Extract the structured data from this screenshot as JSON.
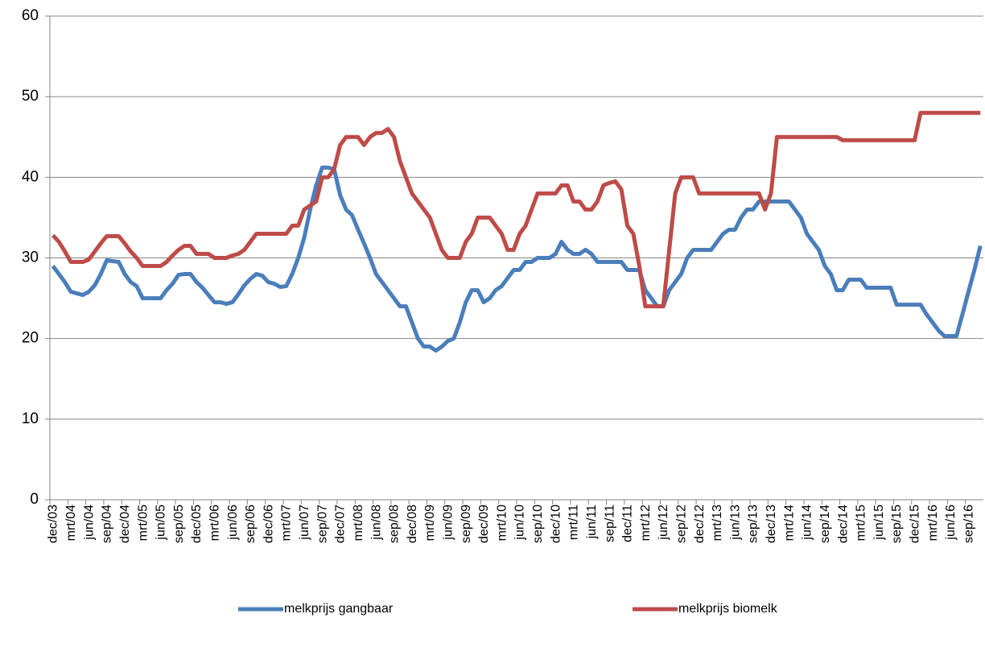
{
  "chart_data": {
    "type": "line",
    "categories": [
      "dec/03",
      null,
      null,
      "mrt/04",
      null,
      null,
      "jun/04",
      null,
      null,
      "sep/04",
      null,
      null,
      "dec/04",
      null,
      null,
      "mrt/05",
      null,
      null,
      "jun/05",
      null,
      null,
      "sep/05",
      null,
      null,
      "dec/05",
      null,
      null,
      "mrt/06",
      null,
      null,
      "jun/06",
      null,
      null,
      "sep/06",
      null,
      null,
      "dec/06",
      null,
      null,
      "mrt/07",
      null,
      null,
      "jun/07",
      null,
      null,
      "sep/07",
      null,
      null,
      "dec/07",
      null,
      null,
      "mrt/08",
      null,
      null,
      "jun/08",
      null,
      null,
      "sep/08",
      null,
      null,
      "dec/08",
      null,
      null,
      "mrt/09",
      null,
      null,
      "jun/09",
      null,
      null,
      "sep/09",
      null,
      null,
      "dec/09",
      null,
      null,
      "mrt/10",
      null,
      null,
      "jun/10",
      null,
      null,
      "sep/10",
      null,
      null,
      "dec/10",
      null,
      null,
      "mrt/11",
      null,
      null,
      "jun/11",
      null,
      null,
      "sep/11",
      null,
      null,
      "dec/11",
      null,
      null,
      "mrt/12",
      null,
      null,
      "jun/12",
      null,
      null,
      "sep/12",
      null,
      null,
      "dec/12",
      null,
      null,
      "mrt/13",
      null,
      null,
      "jun/13",
      null,
      null,
      "sep/13",
      null,
      null,
      "dec/13",
      null,
      null,
      "mrt/14",
      null,
      null,
      "jun/14",
      null,
      null,
      "sep/14",
      null,
      null,
      "dec/14",
      null,
      null,
      "mrt/15",
      null,
      null,
      "jun/15",
      null,
      null,
      "sep/15",
      null,
      null,
      "dec/15",
      null,
      null,
      "mrt/16",
      null,
      null,
      "jun/16",
      null,
      null,
      "sep/16",
      null,
      null
    ],
    "series": [
      {
        "name": "melkprijs gangbaar",
        "color": "#4a7ebb",
        "values": [
          29,
          28,
          27,
          25.8,
          25.6,
          25.4,
          25.8,
          26.6,
          28,
          29.7,
          29.6,
          29.5,
          28,
          27,
          26.5,
          25,
          25,
          25,
          25,
          26,
          26.8,
          27.9,
          28,
          28,
          27,
          26.3,
          25.4,
          24.5,
          24.5,
          24.3,
          24.5,
          25.5,
          26.6,
          27.4,
          28,
          27.8,
          27,
          26.8,
          26.4,
          26.5,
          28,
          30,
          32.5,
          36,
          39,
          41.2,
          41.2,
          41,
          37.8,
          36,
          35.3,
          33.5,
          31.8,
          30,
          28,
          27,
          26,
          25,
          24,
          24,
          22,
          20,
          19,
          19,
          18.5,
          19,
          19.7,
          20,
          22,
          24.5,
          26,
          26,
          24.5,
          25,
          26,
          26.5,
          27.5,
          28.5,
          28.5,
          29.5,
          29.5,
          30,
          30,
          30,
          30.5,
          32,
          31,
          30.5,
          30.5,
          31,
          30.5,
          29.5,
          29.5,
          29.5,
          29.5,
          29.5,
          28.5,
          28.5,
          28.5,
          26,
          25,
          24,
          24,
          26,
          27,
          28,
          30,
          31,
          31,
          31,
          31,
          32,
          33,
          33.5,
          33.5,
          35,
          36,
          36,
          37,
          37,
          37,
          37,
          37,
          37,
          36,
          35,
          33,
          32,
          31,
          29,
          28,
          26,
          26,
          27.3,
          27.3,
          27.3,
          26.3,
          26.3,
          26.3,
          26.3,
          26.3,
          24.2,
          24.2,
          24.2,
          24.2,
          24.2,
          23,
          22,
          21,
          20.3,
          20.3,
          20.3,
          23,
          25.8,
          28.5,
          31.5
        ]
      },
      {
        "name": "melkprijs biomelk",
        "color": "#be4b48",
        "values": [
          32.8,
          32,
          30.8,
          29.5,
          29.5,
          29.5,
          29.8,
          30.8,
          31.8,
          32.7,
          32.7,
          32.7,
          31.8,
          30.8,
          30,
          29,
          29,
          29,
          29,
          29.5,
          30.3,
          31,
          31.5,
          31.5,
          30.5,
          30.5,
          30.5,
          30,
          30,
          30,
          30.3,
          30.5,
          31,
          32,
          33,
          33,
          33,
          33,
          33,
          33,
          34,
          34,
          36,
          36.5,
          37,
          40,
          40,
          41,
          44,
          45,
          45,
          45,
          44,
          45,
          45.5,
          45.5,
          46,
          45,
          42,
          40,
          38,
          37,
          36,
          35,
          33,
          31,
          30,
          30,
          30,
          32,
          33,
          35,
          35,
          35,
          34,
          33,
          31,
          31,
          33,
          34,
          36,
          38,
          38,
          38,
          38,
          39,
          39,
          37,
          37,
          36,
          36,
          37,
          39,
          39.3,
          39.5,
          38.5,
          34,
          33,
          29,
          24,
          24,
          24,
          24,
          31,
          38,
          40,
          40,
          40,
          38,
          38,
          38,
          38,
          38,
          38,
          38,
          38,
          38,
          38,
          38,
          36,
          38,
          45,
          45,
          45,
          45,
          45,
          45,
          45,
          45,
          45,
          45,
          45,
          44.6,
          44.6,
          44.6,
          44.6,
          44.6,
          44.6,
          44.6,
          44.6,
          44.6,
          44.6,
          44.6,
          44.6,
          44.6,
          48,
          48,
          48,
          48,
          48,
          48,
          48,
          48,
          48,
          48,
          48
        ]
      }
    ],
    "ylim": [
      0,
      60
    ],
    "yticks": [
      0,
      10,
      20,
      30,
      40,
      50,
      60
    ],
    "grid": true,
    "legend": "bottom"
  }
}
